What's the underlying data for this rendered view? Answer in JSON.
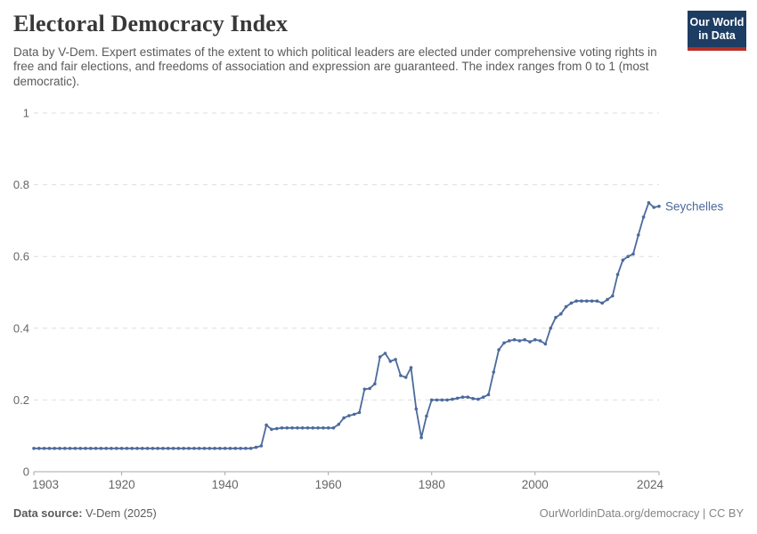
{
  "header": {
    "title": "Electoral Democracy Index",
    "subtitle": "Data by V-Dem. Expert estimates of the extent to which political leaders are elected under comprehensive voting rights in free and fair elections, and freedoms of association and expression are guaranteed. The index ranges from 0 to 1 (most democratic)."
  },
  "logo": {
    "line1": "Our World",
    "line2": "in Data"
  },
  "footer": {
    "datasource_label": "Data source:",
    "datasource_value": " V-Dem (2025)",
    "right": "OurWorldinData.org/democracy | CC BY"
  },
  "colors": {
    "line": "#4C6A9C",
    "grid": "#dedede",
    "axis": "#a7a7a7",
    "tick_label": "#666666",
    "title": "#383838",
    "subtitle": "#5a5a5a",
    "logo_bg": "#1d3d63",
    "logo_red": "#b62e24"
  },
  "chart_data": {
    "type": "line",
    "title": "Electoral Democracy Index",
    "entity_label": "Seychelles",
    "xlim": [
      1903,
      2024
    ],
    "ylim": [
      0,
      1
    ],
    "x_ticks": [
      1903,
      1920,
      1940,
      1960,
      1980,
      2000,
      2024
    ],
    "y_ticks": [
      0,
      0.2,
      0.4,
      0.6,
      0.8,
      1
    ],
    "y_tick_labels": [
      "0",
      "0.2",
      "0.4",
      "0.6",
      "0.8",
      "1"
    ],
    "grid": "dashed-horizontal",
    "legend_position": "end-of-line-label",
    "series": [
      {
        "name": "Seychelles",
        "year_start": 1903,
        "year_end": 2024,
        "values": [
          0.065,
          0.065,
          0.065,
          0.065,
          0.065,
          0.065,
          0.065,
          0.065,
          0.065,
          0.065,
          0.065,
          0.065,
          0.065,
          0.065,
          0.065,
          0.065,
          0.065,
          0.065,
          0.065,
          0.065,
          0.065,
          0.065,
          0.065,
          0.065,
          0.065,
          0.065,
          0.065,
          0.065,
          0.065,
          0.065,
          0.065,
          0.065,
          0.065,
          0.065,
          0.065,
          0.065,
          0.065,
          0.065,
          0.065,
          0.065,
          0.065,
          0.065,
          0.065,
          0.068,
          0.072,
          0.13,
          0.118,
          0.12,
          0.122,
          0.122,
          0.122,
          0.122,
          0.122,
          0.122,
          0.122,
          0.122,
          0.122,
          0.122,
          0.122,
          0.132,
          0.15,
          0.156,
          0.16,
          0.165,
          0.23,
          0.232,
          0.245,
          0.32,
          0.33,
          0.308,
          0.313,
          0.268,
          0.263,
          0.29,
          0.175,
          0.095,
          0.155,
          0.2,
          0.2,
          0.2,
          0.2,
          0.202,
          0.205,
          0.208,
          0.208,
          0.204,
          0.202,
          0.208,
          0.215,
          0.278,
          0.34,
          0.359,
          0.365,
          0.368,
          0.365,
          0.368,
          0.362,
          0.368,
          0.365,
          0.356,
          0.4,
          0.43,
          0.44,
          0.46,
          0.47,
          0.476,
          0.476,
          0.476,
          0.476,
          0.476,
          0.47,
          0.48,
          0.49,
          0.55,
          0.59,
          0.6,
          0.607,
          0.66,
          0.71,
          0.75,
          0.737,
          0.74
        ]
      }
    ]
  }
}
